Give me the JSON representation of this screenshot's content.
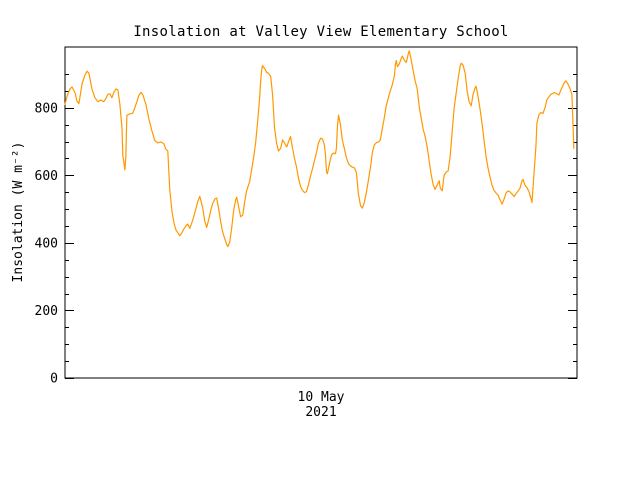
{
  "page": {
    "background_color": "#FFFFFF"
  },
  "chart_data": {
    "type": "line",
    "title": "Insolation at Valley View Elementary School",
    "ylabel": "Insolation (W m⁻²)",
    "xtick_label_line1": "10 May",
    "xtick_label_line2": "2021",
    "x_axis": {
      "range_hours": [
        0,
        24
      ],
      "labeled_tick": "10 May 2021",
      "numeric_ticks_visible": false
    },
    "ylim": [
      0,
      980
    ],
    "yticks": [
      0,
      200,
      400,
      600,
      800
    ],
    "ytick_minor_interval": 50,
    "grid": false,
    "legend": "none",
    "line_color": "#FF9800",
    "axis_color": "#000000",
    "series": [
      {
        "name": "insolation",
        "units": "W m-2",
        "points": [
          [
            0.0,
            810
          ],
          [
            0.09,
            833
          ],
          [
            0.23,
            856
          ],
          [
            0.33,
            862
          ],
          [
            0.47,
            845
          ],
          [
            0.56,
            820
          ],
          [
            0.65,
            812
          ],
          [
            0.8,
            872
          ],
          [
            0.94,
            898
          ],
          [
            1.03,
            908
          ],
          [
            1.12,
            903
          ],
          [
            1.26,
            856
          ],
          [
            1.4,
            830
          ],
          [
            1.54,
            818
          ],
          [
            1.68,
            823
          ],
          [
            1.82,
            818
          ],
          [
            1.92,
            828
          ],
          [
            2.01,
            840
          ],
          [
            2.11,
            841
          ],
          [
            2.2,
            830
          ],
          [
            2.29,
            846
          ],
          [
            2.39,
            856
          ],
          [
            2.48,
            853
          ],
          [
            2.57,
            812
          ],
          [
            2.67,
            740
          ],
          [
            2.71,
            660
          ],
          [
            2.81,
            616
          ],
          [
            2.85,
            655
          ],
          [
            2.9,
            778
          ],
          [
            3.04,
            782
          ],
          [
            3.18,
            784
          ],
          [
            3.27,
            800
          ],
          [
            3.37,
            818
          ],
          [
            3.46,
            836
          ],
          [
            3.56,
            846
          ],
          [
            3.65,
            838
          ],
          [
            3.79,
            810
          ],
          [
            3.93,
            768
          ],
          [
            4.07,
            733
          ],
          [
            4.21,
            703
          ],
          [
            4.35,
            696
          ],
          [
            4.49,
            699
          ],
          [
            4.63,
            694
          ],
          [
            4.72,
            678
          ],
          [
            4.82,
            672
          ],
          [
            4.91,
            560
          ],
          [
            5.01,
            495
          ],
          [
            5.1,
            462
          ],
          [
            5.19,
            440
          ],
          [
            5.29,
            430
          ],
          [
            5.38,
            421
          ],
          [
            5.47,
            429
          ],
          [
            5.57,
            441
          ],
          [
            5.66,
            449
          ],
          [
            5.75,
            456
          ],
          [
            5.85,
            443
          ],
          [
            5.99,
            468
          ],
          [
            6.13,
            500
          ],
          [
            6.22,
            522
          ],
          [
            6.32,
            538
          ],
          [
            6.46,
            502
          ],
          [
            6.55,
            465
          ],
          [
            6.64,
            446
          ],
          [
            6.74,
            470
          ],
          [
            6.83,
            496
          ],
          [
            6.92,
            516
          ],
          [
            7.02,
            530
          ],
          [
            7.11,
            533
          ],
          [
            7.2,
            502
          ],
          [
            7.3,
            462
          ],
          [
            7.39,
            432
          ],
          [
            7.49,
            412
          ],
          [
            7.58,
            395
          ],
          [
            7.63,
            389
          ],
          [
            7.72,
            402
          ],
          [
            7.81,
            442
          ],
          [
            7.91,
            497
          ],
          [
            8.0,
            528
          ],
          [
            8.05,
            535
          ],
          [
            8.14,
            506
          ],
          [
            8.23,
            478
          ],
          [
            8.33,
            482
          ],
          [
            8.42,
            520
          ],
          [
            8.51,
            553
          ],
          [
            8.66,
            582
          ],
          [
            8.75,
            618
          ],
          [
            8.84,
            652
          ],
          [
            8.94,
            698
          ],
          [
            9.03,
            758
          ],
          [
            9.12,
            828
          ],
          [
            9.17,
            878
          ],
          [
            9.22,
            912
          ],
          [
            9.26,
            925
          ],
          [
            9.36,
            916
          ],
          [
            9.45,
            905
          ],
          [
            9.54,
            902
          ],
          [
            9.64,
            893
          ],
          [
            9.73,
            838
          ],
          [
            9.82,
            742
          ],
          [
            9.92,
            695
          ],
          [
            10.01,
            672
          ],
          [
            10.11,
            680
          ],
          [
            10.2,
            705
          ],
          [
            10.29,
            696
          ],
          [
            10.39,
            684
          ],
          [
            10.48,
            700
          ],
          [
            10.57,
            715
          ],
          [
            10.67,
            680
          ],
          [
            10.76,
            650
          ],
          [
            10.85,
            625
          ],
          [
            10.95,
            590
          ],
          [
            11.04,
            568
          ],
          [
            11.13,
            556
          ],
          [
            11.23,
            549
          ],
          [
            11.32,
            552
          ],
          [
            11.41,
            572
          ],
          [
            11.51,
            598
          ],
          [
            11.6,
            620
          ],
          [
            11.7,
            645
          ],
          [
            11.79,
            668
          ],
          [
            11.88,
            695
          ],
          [
            11.98,
            710
          ],
          [
            12.07,
            708
          ],
          [
            12.16,
            690
          ],
          [
            12.21,
            660
          ],
          [
            12.26,
            610
          ],
          [
            12.3,
            605
          ],
          [
            12.4,
            635
          ],
          [
            12.49,
            660
          ],
          [
            12.58,
            666
          ],
          [
            12.68,
            664
          ],
          [
            12.72,
            680
          ],
          [
            12.77,
            742
          ],
          [
            12.82,
            778
          ],
          [
            12.91,
            752
          ],
          [
            13.0,
            705
          ],
          [
            13.1,
            678
          ],
          [
            13.19,
            652
          ],
          [
            13.29,
            635
          ],
          [
            13.38,
            628
          ],
          [
            13.47,
            624
          ],
          [
            13.57,
            622
          ],
          [
            13.66,
            608
          ],
          [
            13.75,
            548
          ],
          [
            13.85,
            510
          ],
          [
            13.94,
            503
          ],
          [
            14.03,
            520
          ],
          [
            14.13,
            550
          ],
          [
            14.22,
            585
          ],
          [
            14.32,
            625
          ],
          [
            14.41,
            668
          ],
          [
            14.5,
            690
          ],
          [
            14.6,
            697
          ],
          [
            14.69,
            699
          ],
          [
            14.78,
            705
          ],
          [
            14.88,
            740
          ],
          [
            14.97,
            772
          ],
          [
            15.06,
            808
          ],
          [
            15.16,
            830
          ],
          [
            15.25,
            850
          ],
          [
            15.34,
            868
          ],
          [
            15.44,
            895
          ],
          [
            15.49,
            930
          ],
          [
            15.53,
            940
          ],
          [
            15.58,
            922
          ],
          [
            15.67,
            930
          ],
          [
            15.77,
            947
          ],
          [
            15.81,
            953
          ],
          [
            15.91,
            941
          ],
          [
            16.0,
            934
          ],
          [
            16.09,
            960
          ],
          [
            16.14,
            969
          ],
          [
            16.23,
            942
          ],
          [
            16.33,
            906
          ],
          [
            16.42,
            878
          ],
          [
            16.51,
            856
          ],
          [
            16.61,
            802
          ],
          [
            16.7,
            768
          ],
          [
            16.79,
            736
          ],
          [
            16.89,
            713
          ],
          [
            16.98,
            684
          ],
          [
            17.07,
            642
          ],
          [
            17.17,
            600
          ],
          [
            17.26,
            572
          ],
          [
            17.35,
            558
          ],
          [
            17.45,
            572
          ],
          [
            17.54,
            584
          ],
          [
            17.59,
            562
          ],
          [
            17.68,
            554
          ],
          [
            17.77,
            600
          ],
          [
            17.87,
            610
          ],
          [
            17.96,
            613
          ],
          [
            18.05,
            655
          ],
          [
            18.15,
            730
          ],
          [
            18.24,
            798
          ],
          [
            18.33,
            840
          ],
          [
            18.43,
            888
          ],
          [
            18.52,
            922
          ],
          [
            18.57,
            932
          ],
          [
            18.66,
            926
          ],
          [
            18.76,
            902
          ],
          [
            18.85,
            850
          ],
          [
            18.94,
            818
          ],
          [
            19.04,
            806
          ],
          [
            19.13,
            840
          ],
          [
            19.22,
            858
          ],
          [
            19.27,
            864
          ],
          [
            19.36,
            835
          ],
          [
            19.46,
            795
          ],
          [
            19.55,
            752
          ],
          [
            19.64,
            705
          ],
          [
            19.74,
            655
          ],
          [
            19.83,
            622
          ],
          [
            19.92,
            595
          ],
          [
            20.02,
            570
          ],
          [
            20.11,
            556
          ],
          [
            20.2,
            548
          ],
          [
            20.3,
            541
          ],
          [
            20.39,
            528
          ],
          [
            20.49,
            515
          ],
          [
            20.58,
            529
          ],
          [
            20.67,
            548
          ],
          [
            20.77,
            554
          ],
          [
            20.86,
            551
          ],
          [
            20.95,
            545
          ],
          [
            21.05,
            537
          ],
          [
            21.14,
            546
          ],
          [
            21.23,
            553
          ],
          [
            21.33,
            562
          ],
          [
            21.42,
            583
          ],
          [
            21.47,
            588
          ],
          [
            21.56,
            571
          ],
          [
            21.66,
            563
          ],
          [
            21.75,
            552
          ],
          [
            21.84,
            532
          ],
          [
            21.89,
            520
          ],
          [
            21.98,
            600
          ],
          [
            22.08,
            690
          ],
          [
            22.12,
            755
          ],
          [
            22.22,
            780
          ],
          [
            22.31,
            786
          ],
          [
            22.4,
            783
          ],
          [
            22.5,
            800
          ],
          [
            22.59,
            824
          ],
          [
            22.68,
            832
          ],
          [
            22.78,
            840
          ],
          [
            22.87,
            843
          ],
          [
            22.96,
            845
          ],
          [
            23.06,
            841
          ],
          [
            23.15,
            838
          ],
          [
            23.24,
            852
          ],
          [
            23.34,
            866
          ],
          [
            23.43,
            876
          ],
          [
            23.48,
            880
          ],
          [
            23.57,
            871
          ],
          [
            23.67,
            857
          ],
          [
            23.76,
            840
          ],
          [
            23.81,
            760
          ],
          [
            23.85,
            680
          ]
        ]
      }
    ]
  }
}
